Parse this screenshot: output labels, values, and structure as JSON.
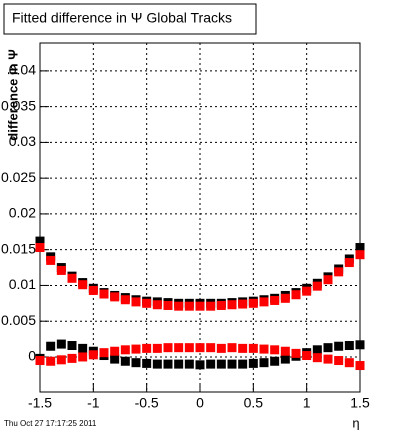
{
  "chart_data": {
    "type": "scatter",
    "title": "Fitted difference in  Ψ   Global Tracks",
    "y_label": "difference in Ψ",
    "x_label": "η",
    "timestamp": "Thu Oct 27 17:17:25 2011",
    "x": [
      -1.5,
      -1.4,
      -1.3,
      -1.2,
      -1.1,
      -1.0,
      -0.9,
      -0.8,
      -0.7,
      -0.6,
      -0.5,
      -0.4,
      -0.3,
      -0.2,
      -0.1,
      0,
      0.1,
      0.2,
      0.3,
      0.4,
      0.5,
      0.6,
      0.7,
      0.8,
      0.9,
      1.0,
      1.1,
      1.2,
      1.3,
      1.4,
      1.5
    ],
    "series": [
      {
        "color": "#000000",
        "values": [
          0.0162,
          0.014,
          0.0125,
          0.0113,
          0.0104,
          0.0096,
          0.009,
          0.0086,
          0.0083,
          0.008,
          0.0078,
          0.0077,
          0.0076,
          0.0075,
          0.0075,
          0.0075,
          0.0075,
          0.0075,
          0.0076,
          0.0077,
          0.0078,
          0.008,
          0.0082,
          0.0086,
          0.009,
          0.0096,
          0.0103,
          0.0112,
          0.0123,
          0.0137,
          0.0153
        ]
      },
      {
        "color": "#ff0000",
        "values": [
          0.0153,
          0.0135,
          0.0121,
          0.011,
          0.0101,
          0.0093,
          0.0088,
          0.0084,
          0.008,
          0.0077,
          0.0075,
          0.0073,
          0.0072,
          0.0071,
          0.0071,
          0.0071,
          0.0071,
          0.0072,
          0.0073,
          0.0074,
          0.0075,
          0.0077,
          0.0079,
          0.0082,
          0.0087,
          0.0092,
          0.0099,
          0.0108,
          0.0119,
          0.0132,
          0.0143
        ]
      },
      {
        "color": "#000000",
        "values": [
          -0.0002,
          0.0015,
          0.0018,
          0.0016,
          0.0012,
          0.0008,
          0.0002,
          -0.0003,
          -0.0006,
          -0.0008,
          -0.0009,
          -0.001,
          -0.001,
          -0.001,
          -0.001,
          -0.0011,
          -0.001,
          -0.001,
          -0.001,
          -0.001,
          -0.0009,
          -0.0008,
          -0.0006,
          -0.0003,
          0.0001,
          0.0006,
          0.001,
          0.0013,
          0.0015,
          0.0016,
          0.0017
        ]
      },
      {
        "color": "#ff0000",
        "values": [
          -0.0005,
          -0.0006,
          -0.0004,
          -0.0002,
          0.0,
          0.0003,
          0.0006,
          0.0008,
          0.001,
          0.0011,
          0.0012,
          0.0012,
          0.0013,
          0.0013,
          0.0013,
          0.0013,
          0.0013,
          0.0012,
          0.0013,
          0.0012,
          0.0012,
          0.0011,
          0.001,
          0.0008,
          0.0005,
          0.0002,
          -0.0001,
          -0.0003,
          -0.0005,
          -0.0008,
          -0.0012
        ]
      }
    ],
    "xlim": [
      -1.5,
      1.5
    ],
    "ylim": [
      -0.0049,
      0.0439
    ],
    "xticks": [
      -1.5,
      -1,
      -0.5,
      0,
      0.5,
      1,
      1.5
    ],
    "yticks": [
      0,
      0.005,
      0.01,
      0.015,
      0.02,
      0.025,
      0.03,
      0.035,
      0.04
    ],
    "grid": true
  }
}
